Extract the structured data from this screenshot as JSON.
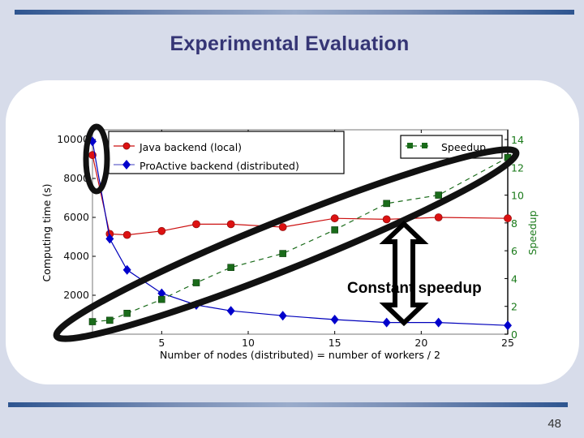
{
  "slide": {
    "title": "Experimental Evaluation",
    "page_number": "48",
    "annotation": "Constant speedup"
  },
  "colors": {
    "background": "#d7dcea",
    "title": "#353575",
    "java": "#cc1111",
    "proactive": "#0000bb",
    "speedup": "#1a6b1a"
  },
  "chart_data": {
    "type": "line",
    "title": "",
    "xlabel": "Number of nodes (distributed) = number of workers / 2",
    "ylabel": "Computing time (s)",
    "y2label": "Speedup",
    "xlim": [
      1,
      25
    ],
    "ylim": [
      0,
      10500
    ],
    "y2lim": [
      0,
      14.7
    ],
    "xticks": [
      5,
      10,
      15,
      20,
      25
    ],
    "yticks": [
      2000,
      4000,
      6000,
      8000,
      10000
    ],
    "y2ticks": [
      0,
      2,
      4,
      6,
      8,
      10,
      12,
      14
    ],
    "grid": false,
    "legend": [
      {
        "label": "Java backend (local)",
        "position": "upper left"
      },
      {
        "label": "ProActive backend (distributed)",
        "position": "upper left"
      },
      {
        "label": "Speedup",
        "position": "upper right"
      }
    ],
    "x": [
      1,
      2,
      3,
      5,
      7,
      9,
      12,
      15,
      18,
      21,
      25
    ],
    "series": [
      {
        "name": "Java backend (local)",
        "axis": "left",
        "marker": "circle",
        "style": "solid",
        "values": [
          9200,
          5150,
          5100,
          5300,
          5650,
          5650,
          5500,
          5950,
          5900,
          6000,
          5950
        ]
      },
      {
        "name": "ProActive backend (distributed)",
        "axis": "left",
        "marker": "diamond",
        "style": "solid",
        "values": [
          9900,
          4900,
          3300,
          2100,
          1500,
          1200,
          950,
          750,
          600,
          600,
          450
        ]
      },
      {
        "name": "Speedup",
        "axis": "right",
        "marker": "square",
        "style": "dashed",
        "values": [
          0.9,
          1.0,
          1.5,
          2.5,
          3.7,
          4.8,
          5.8,
          7.5,
          9.4,
          10.0,
          12.7
        ]
      }
    ],
    "annotations": [
      {
        "type": "ellipse",
        "label": "highlight first data point"
      },
      {
        "type": "ellipse",
        "label": "highlight speedup trend"
      },
      {
        "type": "double-arrow",
        "label": "Constant speedup"
      }
    ]
  }
}
